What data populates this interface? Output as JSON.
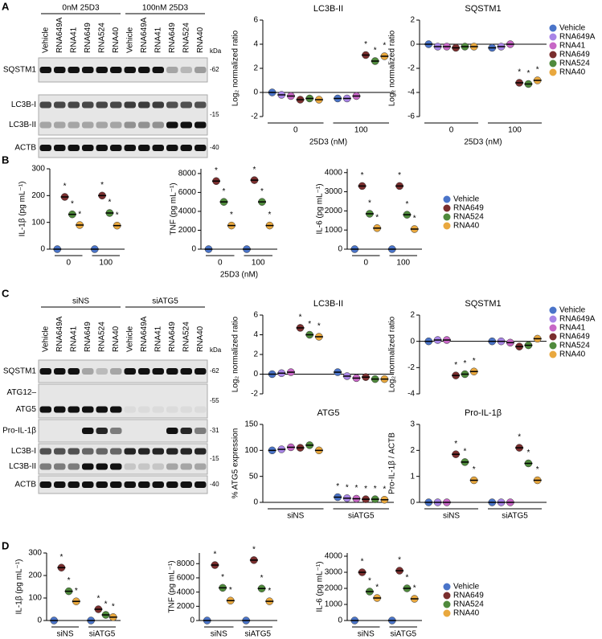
{
  "panel_labels": [
    "A",
    "B",
    "C",
    "D"
  ],
  "blots": [
    {
      "groups": [
        "0nM 25D3",
        "100nM 25D3"
      ],
      "lanes": [
        "Vehicle",
        "RNA649A",
        "RNA41",
        "RNA649",
        "RNA524",
        "RNA40",
        "Vehicle",
        "RNA649A",
        "RNA41",
        "RNA649",
        "RNA524",
        "RNA40"
      ],
      "kda": "kDa",
      "rows": [
        {
          "labels": [
            "SQSTM1"
          ],
          "marker": "-62"
        },
        {
          "labels": [
            "LC3B-I",
            "LC3B-II"
          ],
          "marker": "-15"
        },
        {
          "labels": [
            "ACTB"
          ],
          "marker": "-40"
        }
      ]
    },
    {
      "groups": [
        "siNS",
        "siATG5"
      ],
      "lanes": [
        "Vehicle",
        "RNA649A",
        "RNA41",
        "RNA649",
        "RNA524",
        "RNA40",
        "Vehicle",
        "RNA649A",
        "RNA41",
        "RNA649",
        "RNA524",
        "RNA40"
      ],
      "kda": "kDa",
      "rows": [
        {
          "labels": [
            "SQSTM1"
          ],
          "marker": "-62"
        },
        {
          "labels": [
            "ATG12–",
            "ATG5"
          ],
          "marker": "-55"
        },
        {
          "labels": [
            "Pro-IL-1β"
          ],
          "marker": "-31"
        },
        {
          "labels": [
            "LC3B-I",
            "LC3B-II"
          ],
          "marker": "-15"
        },
        {
          "labels": [
            "ACTB"
          ],
          "marker": "-40"
        }
      ]
    }
  ],
  "chart_data": [
    {
      "type": "dot",
      "title": "LC3B-II",
      "ylabel": "Log₂ normalized ratio",
      "xlabel": "25D3 (nM)",
      "categories": [
        "0",
        "100"
      ],
      "ylim": [
        -2,
        6
      ],
      "yticks": [
        -2,
        0,
        2,
        4,
        6
      ],
      "series": [
        {
          "name": "Vehicle",
          "color": "#4a74c9",
          "values": [
            0,
            -0.5
          ]
        },
        {
          "name": "RNA649A",
          "color": "#a884e6",
          "values": [
            -0.2,
            -0.5
          ]
        },
        {
          "name": "RNA41",
          "color": "#c767c6",
          "values": [
            -0.3,
            -0.3
          ]
        },
        {
          "name": "RNA649",
          "color": "#7a2e2e",
          "values": [
            -0.6,
            3.1
          ],
          "stars": [
            null,
            "*"
          ]
        },
        {
          "name": "RNA524",
          "color": "#4f8a3c",
          "values": [
            -0.5,
            2.6
          ],
          "stars": [
            null,
            "*"
          ]
        },
        {
          "name": "RNA40",
          "color": "#e9a83e",
          "values": [
            -0.6,
            3.0
          ],
          "stars": [
            null,
            "*"
          ]
        }
      ]
    },
    {
      "type": "dot",
      "title": "SQSTM1",
      "ylabel": "Log₂ normalized ratio",
      "xlabel": "25D3 (nM)",
      "categories": [
        "0",
        "100"
      ],
      "ylim": [
        -6,
        2
      ],
      "yticks": [
        -6,
        -4,
        -2,
        0,
        2
      ],
      "series": [
        {
          "name": "Vehicle",
          "color": "#4a74c9",
          "values": [
            0,
            -0.3
          ]
        },
        {
          "name": "RNA649A",
          "color": "#a884e6",
          "values": [
            -0.2,
            -0.2
          ]
        },
        {
          "name": "RNA41",
          "color": "#c767c6",
          "values": [
            -0.2,
            0
          ]
        },
        {
          "name": "RNA649",
          "color": "#7a2e2e",
          "values": [
            -0.3,
            -3.2
          ],
          "stars": [
            null,
            "*"
          ]
        },
        {
          "name": "RNA524",
          "color": "#4f8a3c",
          "values": [
            -0.2,
            -3.3
          ],
          "stars": [
            null,
            "*"
          ]
        },
        {
          "name": "RNA40",
          "color": "#e9a83e",
          "values": [
            -0.2,
            -3.0
          ],
          "stars": [
            null,
            "*"
          ]
        }
      ]
    },
    {
      "type": "dot",
      "ylabel": "IL-1β (pg mL⁻¹)",
      "categories": [
        "0",
        "100"
      ],
      "ylim": [
        0,
        300
      ],
      "yticks": [
        0,
        100,
        200,
        300
      ],
      "series": [
        {
          "name": "Vehicle",
          "color": "#4a74c9",
          "values": [
            0,
            0
          ]
        },
        {
          "name": "RNA649",
          "color": "#7a2e2e",
          "values": [
            195,
            200
          ],
          "stars": [
            "*",
            "*"
          ]
        },
        {
          "name": "RNA524",
          "color": "#4f8a3c",
          "values": [
            130,
            135
          ],
          "stars": [
            "*",
            "*"
          ]
        },
        {
          "name": "RNA40",
          "color": "#e9a83e",
          "values": [
            90,
            88
          ],
          "stars": [
            "*",
            "*"
          ]
        }
      ]
    },
    {
      "type": "dot",
      "ylabel": "TNF (pg mL⁻¹)",
      "xlabel": "25D3 (nM)",
      "categories": [
        "0",
        "100"
      ],
      "ylim": [
        0,
        8500
      ],
      "yticks": [
        0,
        2000,
        4000,
        6000,
        8000
      ],
      "series": [
        {
          "name": "Vehicle",
          "color": "#4a74c9",
          "values": [
            0,
            0
          ]
        },
        {
          "name": "RNA649",
          "color": "#7a2e2e",
          "values": [
            7200,
            7300
          ],
          "stars": [
            "*",
            "*"
          ]
        },
        {
          "name": "RNA524",
          "color": "#4f8a3c",
          "values": [
            5000,
            5000
          ],
          "stars": [
            "*",
            "*"
          ]
        },
        {
          "name": "RNA40",
          "color": "#e9a83e",
          "values": [
            2500,
            2500
          ],
          "stars": [
            "*",
            "*"
          ]
        }
      ]
    },
    {
      "type": "dot",
      "ylabel": "IL-6 (pg mL⁻¹)",
      "categories": [
        "0",
        "100"
      ],
      "ylim": [
        0,
        4200
      ],
      "yticks": [
        0,
        1000,
        2000,
        3000,
        4000
      ],
      "series": [
        {
          "name": "Vehicle",
          "color": "#4a74c9",
          "values": [
            0,
            0
          ]
        },
        {
          "name": "RNA649",
          "color": "#7a2e2e",
          "values": [
            3300,
            3300
          ],
          "stars": [
            "*",
            "*"
          ]
        },
        {
          "name": "RNA524",
          "color": "#4f8a3c",
          "values": [
            1850,
            1800
          ],
          "stars": [
            "*",
            "*"
          ]
        },
        {
          "name": "RNA40",
          "color": "#e9a83e",
          "values": [
            1100,
            1050
          ],
          "stars": [
            "*",
            "*"
          ]
        }
      ]
    },
    {
      "type": "dot",
      "title": "LC3B-II",
      "ylabel": "Log₂ normalized ratio",
      "categories": [
        null,
        null
      ],
      "ylim": [
        -2,
        6
      ],
      "yticks": [
        -2,
        0,
        2,
        4,
        6
      ],
      "series": [
        {
          "name": "Vehicle",
          "color": "#4a74c9",
          "values": [
            0,
            0.2
          ]
        },
        {
          "name": "RNA649A",
          "color": "#a884e6",
          "values": [
            0.1,
            -0.2
          ]
        },
        {
          "name": "RNA41",
          "color": "#c767c6",
          "values": [
            0.2,
            -0.4
          ]
        },
        {
          "name": "RNA649",
          "color": "#7a2e2e",
          "values": [
            4.7,
            -0.3
          ],
          "stars": [
            "*",
            null
          ]
        },
        {
          "name": "RNA524",
          "color": "#4f8a3c",
          "values": [
            4.0,
            -0.5
          ],
          "stars": [
            "*",
            null
          ]
        },
        {
          "name": "RNA40",
          "color": "#e9a83e",
          "values": [
            3.8,
            -0.5
          ],
          "stars": [
            "*",
            null
          ]
        }
      ]
    },
    {
      "type": "dot",
      "title": "SQSTM1",
      "ylabel": "Log₂ normalized ratio",
      "categories": [
        null,
        null
      ],
      "ylim": [
        -4,
        2
      ],
      "yticks": [
        -4,
        -2,
        0,
        2
      ],
      "series": [
        {
          "name": "Vehicle",
          "color": "#4a74c9",
          "values": [
            0,
            0
          ]
        },
        {
          "name": "RNA649A",
          "color": "#a884e6",
          "values": [
            0.1,
            0
          ]
        },
        {
          "name": "RNA41",
          "color": "#c767c6",
          "values": [
            0.1,
            -0.1
          ]
        },
        {
          "name": "RNA649",
          "color": "#7a2e2e",
          "values": [
            -2.6,
            -0.4
          ],
          "stars": [
            "*",
            null
          ]
        },
        {
          "name": "RNA524",
          "color": "#4f8a3c",
          "values": [
            -2.5,
            -0.3
          ],
          "stars": [
            "*",
            null
          ]
        },
        {
          "name": "RNA40",
          "color": "#e9a83e",
          "values": [
            -2.3,
            0.2
          ],
          "stars": [
            "*",
            null
          ]
        }
      ]
    },
    {
      "type": "dot",
      "title": "ATG5",
      "ylabel": "% ATG5 expression",
      "categories": [
        "siNS",
        "siATG5"
      ],
      "ylim": [
        0,
        150
      ],
      "yticks": [
        0,
        50,
        100,
        150
      ],
      "series": [
        {
          "name": "Vehicle",
          "color": "#4a74c9",
          "values": [
            100,
            10
          ],
          "stars": [
            null,
            "*"
          ]
        },
        {
          "name": "RNA649A",
          "color": "#a884e6",
          "values": [
            102,
            8
          ],
          "stars": [
            null,
            "*"
          ]
        },
        {
          "name": "RNA41",
          "color": "#c767c6",
          "values": [
            106,
            7
          ],
          "stars": [
            null,
            "*"
          ]
        },
        {
          "name": "RNA649",
          "color": "#7a2e2e",
          "values": [
            105,
            6
          ],
          "stars": [
            null,
            "*"
          ]
        },
        {
          "name": "RNA524",
          "color": "#4f8a3c",
          "values": [
            110,
            6
          ],
          "stars": [
            null,
            "*"
          ]
        },
        {
          "name": "RNA40",
          "color": "#e9a83e",
          "values": [
            100,
            5
          ],
          "stars": [
            null,
            "*"
          ]
        }
      ]
    },
    {
      "type": "dot",
      "title": "Pro-IL-1β",
      "ylabel": "Pro-IL-1β / ACTB",
      "categories": [
        "siNS",
        "siATG5"
      ],
      "ylim": [
        0,
        3
      ],
      "yticks": [
        0,
        1,
        2,
        3
      ],
      "series": [
        {
          "name": "Vehicle",
          "color": "#4a74c9",
          "values": [
            0,
            0
          ]
        },
        {
          "name": "RNA649A",
          "color": "#a884e6",
          "values": [
            0,
            0
          ]
        },
        {
          "name": "RNA41",
          "color": "#c767c6",
          "values": [
            0,
            0
          ]
        },
        {
          "name": "RNA649",
          "color": "#7a2e2e",
          "values": [
            1.85,
            2.1
          ],
          "stars": [
            "*",
            "*"
          ]
        },
        {
          "name": "RNA524",
          "color": "#4f8a3c",
          "values": [
            1.55,
            1.5
          ],
          "stars": [
            "*",
            "*"
          ]
        },
        {
          "name": "RNA40",
          "color": "#e9a83e",
          "values": [
            0.85,
            0.85
          ],
          "stars": [
            "*",
            "*"
          ]
        }
      ]
    },
    {
      "type": "dot",
      "ylabel": "IL-1β (pg mL⁻¹)",
      "categories": [
        "siNS",
        "siATG5"
      ],
      "ylim": [
        0,
        300
      ],
      "yticks": [
        0,
        100,
        200,
        300
      ],
      "series": [
        {
          "name": "Vehicle",
          "color": "#4a74c9",
          "values": [
            0,
            0
          ]
        },
        {
          "name": "RNA649",
          "color": "#7a2e2e",
          "values": [
            235,
            50
          ],
          "stars": [
            "*",
            "*"
          ]
        },
        {
          "name": "RNA524",
          "color": "#4f8a3c",
          "values": [
            130,
            25
          ],
          "stars": [
            "*",
            "*"
          ]
        },
        {
          "name": "RNA40",
          "color": "#e9a83e",
          "values": [
            85,
            15
          ],
          "stars": [
            "*",
            "*"
          ]
        }
      ]
    },
    {
      "type": "dot",
      "ylabel": "TNF (pg mL⁻¹)",
      "categories": [
        "siNS",
        "siATG5"
      ],
      "ylim": [
        0,
        9500
      ],
      "yticks": [
        0,
        2000,
        4000,
        6000,
        8000
      ],
      "series": [
        {
          "name": "Vehicle",
          "color": "#4a74c9",
          "values": [
            0,
            0
          ]
        },
        {
          "name": "RNA649",
          "color": "#7a2e2e",
          "values": [
            7800,
            8500
          ],
          "stars": [
            "*",
            "*"
          ]
        },
        {
          "name": "RNA524",
          "color": "#4f8a3c",
          "values": [
            4600,
            4500
          ],
          "stars": [
            "*",
            "*"
          ]
        },
        {
          "name": "RNA40",
          "color": "#e9a83e",
          "values": [
            2800,
            2700
          ],
          "stars": [
            "*",
            "*"
          ]
        }
      ]
    },
    {
      "type": "dot",
      "ylabel": "IL-6 (pg mL⁻¹)",
      "categories": [
        "siNS",
        "siATG5"
      ],
      "ylim": [
        0,
        4200
      ],
      "yticks": [
        0,
        1000,
        2000,
        3000,
        4000
      ],
      "series": [
        {
          "name": "Vehicle",
          "color": "#4a74c9",
          "values": [
            0,
            0
          ]
        },
        {
          "name": "RNA649",
          "color": "#7a2e2e",
          "values": [
            3000,
            3100
          ],
          "stars": [
            "*",
            "*"
          ]
        },
        {
          "name": "RNA524",
          "color": "#4f8a3c",
          "values": [
            1800,
            2000
          ],
          "stars": [
            "*",
            "*"
          ]
        },
        {
          "name": "RNA40",
          "color": "#e9a83e",
          "values": [
            1400,
            1350
          ],
          "stars": [
            "*",
            "*"
          ]
        }
      ]
    }
  ]
}
